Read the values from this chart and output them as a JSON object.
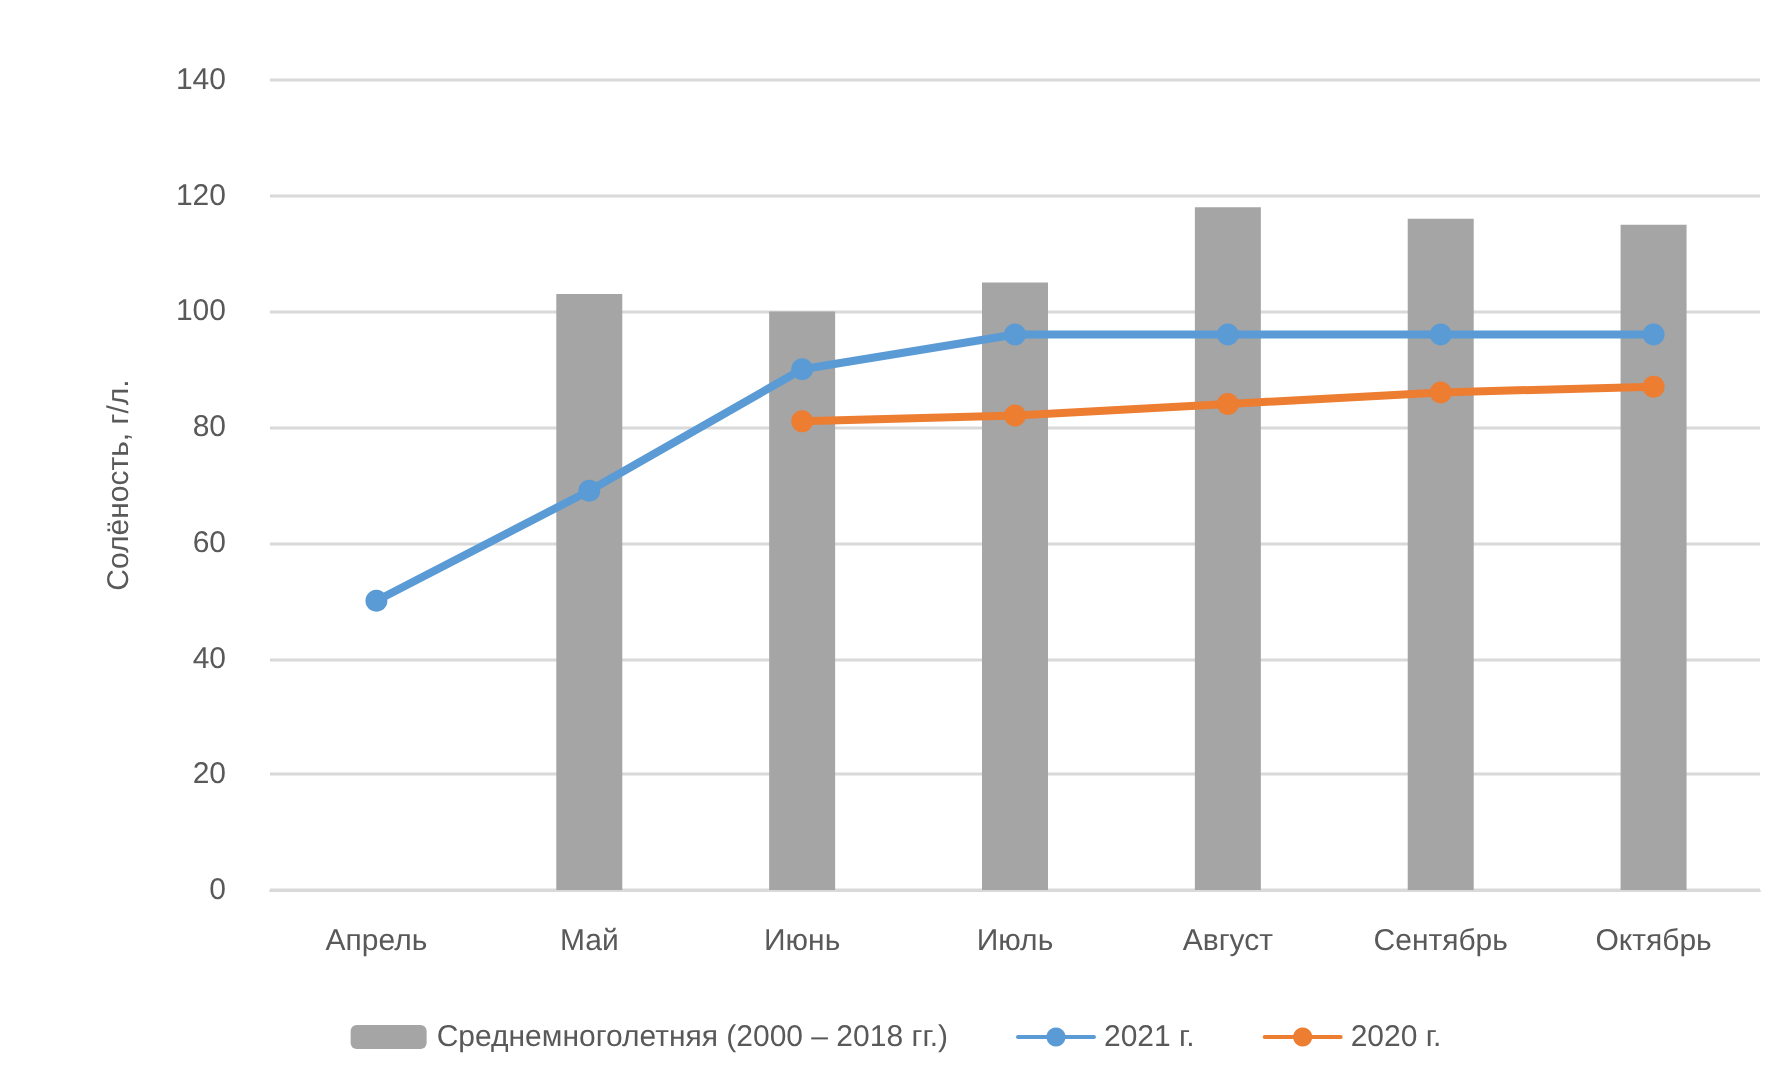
{
  "chart_data": {
    "type": "bar",
    "categories": [
      "Апрель",
      "Май",
      "Июнь",
      "Июль",
      "Август",
      "Сентябрь",
      "Октябрь"
    ],
    "ylabel": "Солёность, г/л.",
    "series": [
      {
        "name": "Среднемноголетняя (2000 – 2018 гг.)",
        "color": "#a5a5a5",
        "values": [
          null,
          103,
          100,
          105,
          118,
          116,
          115
        ]
      },
      {
        "name": "2021 г.",
        "type": "line",
        "color": "#5b9bd5",
        "values": [
          50,
          69,
          90,
          96,
          96,
          96,
          96
        ]
      },
      {
        "name": "2020 г.",
        "type": "line",
        "color": "#ed7d31",
        "values": [
          null,
          null,
          81,
          82,
          84,
          86,
          87
        ]
      }
    ],
    "ylim": [
      0,
      140
    ],
    "yticks": [
      0,
      20,
      40,
      60,
      80,
      100,
      120,
      140
    ],
    "grid": "y",
    "legend": "bottom",
    "marker": "circle",
    "line_style": "solid"
  }
}
